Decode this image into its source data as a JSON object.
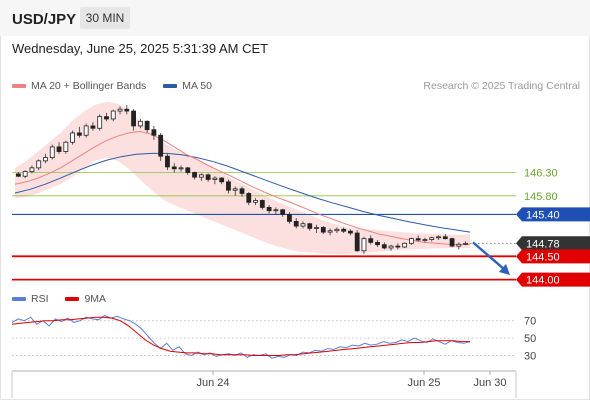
{
  "header": {
    "symbol": "USD/JPY",
    "timeframe": "30 MIN"
  },
  "datetime": "Wednesday, June 25, 2025 5:31:39 AM CET",
  "legend": {
    "ma20": {
      "label": "MA 20 + Bollinger Bands",
      "color": "#f08080"
    },
    "ma50": {
      "label": "MA 50",
      "color": "#2e5aa8"
    }
  },
  "credit": "Research © 2025 Trading Central",
  "rsi_legend": {
    "rsi": {
      "label": "RSI",
      "color": "#5b7fd6"
    },
    "ma9": {
      "label": "9MA",
      "color": "#e00000"
    }
  },
  "chart_data": [
    {
      "type": "candlestick",
      "ylim": [
        143.82,
        147.9
      ],
      "x_ticks": [
        "Jun 24",
        "Jun 25",
        "Jun 30"
      ],
      "candles": [
        [
          146.27,
          146.31,
          146.2,
          146.22
        ],
        [
          146.22,
          146.35,
          146.18,
          146.32
        ],
        [
          146.32,
          146.45,
          146.28,
          146.4
        ],
        [
          146.4,
          146.58,
          146.35,
          146.55
        ],
        [
          146.55,
          146.7,
          146.5,
          146.62
        ],
        [
          146.62,
          146.9,
          146.58,
          146.85
        ],
        [
          146.85,
          146.95,
          146.7,
          146.75
        ],
        [
          146.75,
          146.98,
          146.7,
          146.95
        ],
        [
          146.95,
          147.2,
          146.9,
          147.15
        ],
        [
          147.15,
          147.28,
          147.05,
          147.1
        ],
        [
          147.1,
          147.35,
          147.05,
          147.3
        ],
        [
          147.3,
          147.38,
          147.2,
          147.25
        ],
        [
          147.25,
          147.55,
          147.2,
          147.5
        ],
        [
          147.5,
          147.58,
          147.4,
          147.45
        ],
        [
          147.45,
          147.65,
          147.4,
          147.62
        ],
        [
          147.62,
          147.72,
          147.55,
          147.66
        ],
        [
          147.66,
          147.75,
          147.55,
          147.62
        ],
        [
          147.62,
          147.66,
          147.2,
          147.3
        ],
        [
          147.3,
          147.45,
          147.25,
          147.4
        ],
        [
          147.4,
          147.42,
          147.15,
          147.22
        ],
        [
          147.22,
          147.3,
          147.0,
          147.1
        ],
        [
          147.1,
          147.15,
          146.55,
          146.65
        ],
        [
          146.65,
          146.7,
          146.35,
          146.42
        ],
        [
          146.42,
          146.5,
          146.3,
          146.38
        ],
        [
          146.38,
          146.45,
          146.32,
          146.4
        ],
        [
          146.4,
          146.42,
          146.25,
          146.3
        ],
        [
          146.3,
          146.32,
          146.15,
          146.2
        ],
        [
          146.2,
          146.28,
          146.12,
          146.25
        ],
        [
          146.25,
          146.28,
          146.1,
          146.15
        ],
        [
          146.15,
          146.22,
          146.05,
          146.18
        ],
        [
          146.18,
          146.2,
          146.05,
          146.1
        ],
        [
          146.1,
          146.15,
          145.85,
          145.92
        ],
        [
          145.92,
          146.0,
          145.8,
          145.95
        ],
        [
          145.95,
          146.0,
          145.78,
          145.85
        ],
        [
          145.85,
          145.88,
          145.6,
          145.66
        ],
        [
          145.66,
          145.75,
          145.6,
          145.7
        ],
        [
          145.7,
          145.72,
          145.5,
          145.55
        ],
        [
          145.55,
          145.6,
          145.42,
          145.48
        ],
        [
          145.48,
          145.55,
          145.4,
          145.5
        ],
        [
          145.5,
          145.52,
          145.35,
          145.4
        ],
        [
          145.4,
          145.45,
          145.2,
          145.25
        ],
        [
          145.25,
          145.32,
          145.1,
          145.15
        ],
        [
          145.15,
          145.25,
          145.1,
          145.2
        ],
        [
          145.2,
          145.22,
          145.05,
          145.1
        ],
        [
          145.1,
          145.18,
          145.0,
          145.12
        ],
        [
          145.12,
          145.15,
          144.98,
          145.02
        ],
        [
          145.02,
          145.1,
          144.95,
          145.05
        ],
        [
          145.05,
          145.12,
          145.0,
          145.08
        ],
        [
          145.08,
          145.12,
          145.0,
          145.04
        ],
        [
          145.04,
          145.08,
          144.95,
          145.0
        ],
        [
          145.0,
          145.06,
          144.6,
          144.62
        ],
        [
          144.62,
          144.92,
          144.55,
          144.88
        ],
        [
          144.88,
          144.95,
          144.75,
          144.8
        ],
        [
          144.8,
          144.85,
          144.7,
          144.75
        ],
        [
          144.75,
          144.8,
          144.65,
          144.68
        ],
        [
          144.68,
          144.75,
          144.62,
          144.72
        ],
        [
          144.72,
          144.78,
          144.65,
          144.7
        ],
        [
          144.7,
          144.8,
          144.68,
          144.78
        ],
        [
          144.78,
          144.9,
          144.75,
          144.88
        ],
        [
          144.88,
          144.95,
          144.82,
          144.85
        ],
        [
          144.85,
          144.9,
          144.8,
          144.86
        ],
        [
          144.86,
          144.92,
          144.82,
          144.9
        ],
        [
          144.9,
          144.95,
          144.85,
          144.92
        ],
        [
          144.92,
          144.98,
          144.86,
          144.88
        ],
        [
          144.88,
          144.9,
          144.7,
          144.72
        ],
        [
          144.72,
          144.8,
          144.65,
          144.76
        ],
        [
          144.76,
          144.82,
          144.74,
          144.78
        ]
      ],
      "ma20": [
        146.05,
        146.1,
        146.18,
        146.28,
        146.4,
        146.55,
        146.7,
        146.85,
        146.98,
        147.08,
        147.15,
        147.18,
        147.12,
        147.0,
        146.85,
        146.7,
        146.58,
        146.45,
        146.33,
        146.22,
        146.1,
        145.98,
        145.87,
        145.77,
        145.68,
        145.58,
        145.48,
        145.38,
        145.29,
        145.2,
        145.12,
        145.05,
        144.98,
        144.93,
        144.88,
        144.84,
        144.8,
        144.78,
        144.76,
        144.75,
        144.76
      ],
      "bb_upper": [
        146.4,
        146.55,
        146.75,
        146.95,
        147.15,
        147.4,
        147.6,
        147.75,
        147.82,
        147.78,
        147.62,
        147.4,
        147.15,
        146.95,
        146.8,
        146.7,
        146.58,
        146.45,
        146.32,
        146.18,
        146.05,
        145.92,
        145.8,
        145.68,
        145.58,
        145.48,
        145.38,
        145.28,
        145.2,
        145.13,
        145.1,
        145.08,
        145.06,
        145.04,
        145.02,
        145.0,
        144.99,
        144.98,
        144.97,
        144.96,
        144.97
      ],
      "bb_lower": [
        145.75,
        145.78,
        145.85,
        145.95,
        146.05,
        146.2,
        146.38,
        146.55,
        146.62,
        146.55,
        146.38,
        146.15,
        145.92,
        145.72,
        145.6,
        145.5,
        145.4,
        145.3,
        145.2,
        145.1,
        145.0,
        144.9,
        144.8,
        144.72,
        144.65,
        144.6,
        144.58,
        144.56,
        144.55,
        144.55,
        144.56,
        144.58,
        144.6,
        144.62,
        144.64,
        144.65,
        144.66,
        144.67,
        144.68,
        144.68,
        144.68
      ],
      "ma50": [
        145.86,
        145.94,
        146.05,
        146.18,
        146.32,
        146.45,
        146.56,
        146.64,
        146.69,
        146.71,
        146.71,
        146.68,
        146.62,
        146.54,
        146.44,
        146.32,
        146.2,
        146.08,
        145.96,
        145.85,
        145.74,
        145.64,
        145.55,
        145.46,
        145.38,
        145.31,
        145.24,
        145.18,
        145.12,
        145.07,
        145.02
      ],
      "levels": [
        {
          "value": "146.30",
          "color": "#8cc63f",
          "style": "thin"
        },
        {
          "value": "145.80",
          "color": "#8cc63f",
          "style": "thin"
        },
        {
          "value": "145.40",
          "color": "#1f4fb5",
          "style": "line"
        },
        {
          "value": "144.78",
          "color": "#333333",
          "style": "dotted-last"
        },
        {
          "value": "144.50",
          "color": "#e00000",
          "style": "thick"
        },
        {
          "value": "144.00",
          "color": "#e00000",
          "style": "thick"
        }
      ],
      "forecast_arrow": {
        "from": 144.8,
        "to": 144.1,
        "color": "#2e62b8"
      }
    },
    {
      "type": "line",
      "ylim": [
        18,
        88
      ],
      "y_ticks": [
        "70",
        "50",
        "30"
      ],
      "rsi": [
        68,
        72,
        70,
        74,
        66,
        70,
        64,
        72,
        69,
        73,
        68,
        70,
        74,
        72,
        71,
        76,
        73,
        75,
        72,
        70,
        66,
        60,
        52,
        44,
        38,
        44,
        36,
        40,
        32,
        30,
        34,
        31,
        33,
        29,
        31,
        32,
        30,
        33,
        28,
        31,
        30,
        32,
        27,
        29,
        28,
        31,
        30,
        34,
        33,
        36,
        35,
        38,
        37,
        40,
        39,
        42,
        41,
        44,
        42,
        43,
        46,
        44,
        45,
        48,
        46,
        50,
        47,
        45,
        49,
        46,
        43,
        47,
        45,
        44,
        46
      ],
      "ma9": [
        66,
        67,
        68,
        69,
        70,
        70,
        71,
        71,
        72,
        73,
        74,
        74,
        73,
        70,
        64,
        56,
        48,
        42,
        38,
        35,
        34,
        33,
        33,
        32,
        32,
        31,
        31,
        31,
        31,
        30,
        30,
        30,
        30,
        31,
        31,
        32,
        33,
        34,
        35,
        36,
        37,
        38,
        39,
        40,
        41,
        42,
        43,
        44,
        45,
        45,
        46,
        47,
        47,
        47,
        46,
        46
      ]
    }
  ]
}
